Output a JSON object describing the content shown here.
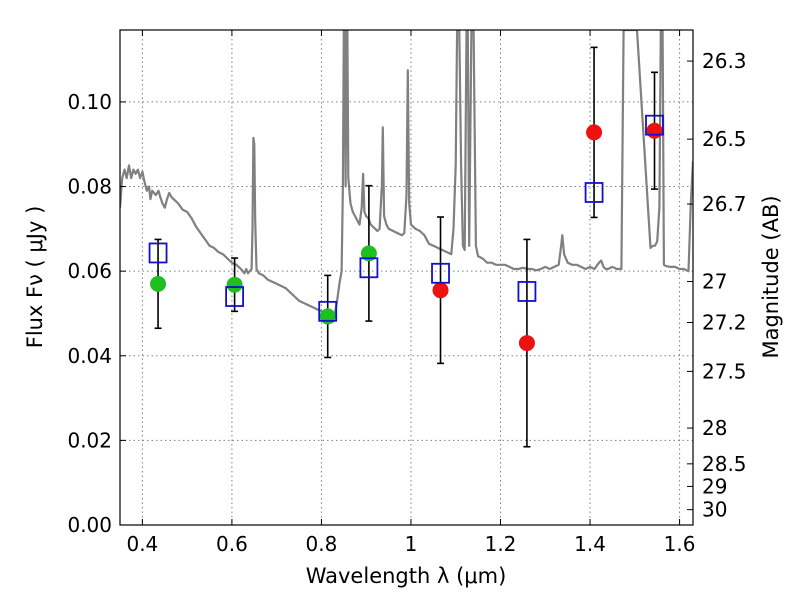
{
  "chart_data": {
    "type": "scatter",
    "title": "",
    "xlabel": "Wavelength  λ (μm)",
    "ylabel": "Flux  Fν  ( μJy )",
    "ylabel_right": "Magnitude (AB)",
    "xlim": [
      0.35,
      1.63
    ],
    "ylim": [
      0.0,
      0.117
    ],
    "grid": true,
    "x_ticks": [
      {
        "value": 0.4,
        "label": "0.4"
      },
      {
        "value": 0.6,
        "label": "0.6"
      },
      {
        "value": 0.8,
        "label": "0.8"
      },
      {
        "value": 1.0,
        "label": "1"
      },
      {
        "value": 1.2,
        "label": "1.2"
      },
      {
        "value": 1.4,
        "label": "1.4"
      },
      {
        "value": 1.6,
        "label": "1.6"
      }
    ],
    "y_ticks": [
      {
        "value": 0.0,
        "label": "0.00"
      },
      {
        "value": 0.02,
        "label": "0.02"
      },
      {
        "value": 0.04,
        "label": "0.04"
      },
      {
        "value": 0.06,
        "label": "0.06"
      },
      {
        "value": 0.08,
        "label": "0.08"
      },
      {
        "value": 0.1,
        "label": "0.10"
      }
    ],
    "right_ticks": [
      {
        "mag": 26.3,
        "label": "26.3"
      },
      {
        "mag": 26.5,
        "label": "26.5"
      },
      {
        "mag": 26.7,
        "label": "26.7"
      },
      {
        "mag": 27.0,
        "label": "27"
      },
      {
        "mag": 27.2,
        "label": "27.2"
      },
      {
        "mag": 27.5,
        "label": "27.5"
      },
      {
        "mag": 28.0,
        "label": "28"
      },
      {
        "mag": 28.5,
        "label": "28.5"
      },
      {
        "mag": 29.0,
        "label": "29"
      },
      {
        "mag": 30.0,
        "label": "30"
      }
    ],
    "series": [
      {
        "marker": "circle",
        "color": "#1fbf1f",
        "points": [
          {
            "x": 0.435,
            "y": 0.057,
            "err": 0.0105
          },
          {
            "x": 0.606,
            "y": 0.0568,
            "err": 0.0063
          },
          {
            "x": 0.814,
            "y": 0.0493,
            "err": 0.0097
          },
          {
            "x": 0.906,
            "y": 0.0642,
            "err": 0.016
          }
        ]
      },
      {
        "marker": "circle",
        "color": "#ee1111",
        "points": [
          {
            "x": 1.066,
            "y": 0.0555,
            "err": 0.0173
          },
          {
            "x": 1.259,
            "y": 0.043,
            "err": 0.0245
          },
          {
            "x": 1.409,
            "y": 0.0928,
            "err": 0.0201
          },
          {
            "x": 1.544,
            "y": 0.0932,
            "err": 0.0138
          }
        ]
      },
      {
        "marker": "square-open",
        "color": "#1111cc",
        "points": [
          {
            "x": 0.435,
            "y": 0.0643
          },
          {
            "x": 0.606,
            "y": 0.054
          },
          {
            "x": 0.814,
            "y": 0.0505
          },
          {
            "x": 0.906,
            "y": 0.0608
          },
          {
            "x": 1.066,
            "y": 0.0595
          },
          {
            "x": 1.259,
            "y": 0.0552
          },
          {
            "x": 1.409,
            "y": 0.0786
          },
          {
            "x": 1.544,
            "y": 0.0945
          }
        ]
      },
      {
        "marker": "line",
        "color": "#808080",
        "points": [
          [
            0.35,
            0.075
          ],
          [
            0.355,
            0.082
          ],
          [
            0.36,
            0.084
          ],
          [
            0.365,
            0.082
          ],
          [
            0.37,
            0.085
          ],
          [
            0.375,
            0.082
          ],
          [
            0.38,
            0.084
          ],
          [
            0.385,
            0.083
          ],
          [
            0.39,
            0.084
          ],
          [
            0.395,
            0.082
          ],
          [
            0.4,
            0.0835
          ],
          [
            0.405,
            0.081
          ],
          [
            0.41,
            0.079
          ],
          [
            0.415,
            0.08
          ],
          [
            0.418,
            0.077
          ],
          [
            0.422,
            0.079
          ],
          [
            0.43,
            0.078
          ],
          [
            0.436,
            0.079
          ],
          [
            0.44,
            0.0775
          ],
          [
            0.445,
            0.076
          ],
          [
            0.45,
            0.075
          ],
          [
            0.455,
            0.077
          ],
          [
            0.46,
            0.0785
          ],
          [
            0.465,
            0.0775
          ],
          [
            0.47,
            0.077
          ],
          [
            0.48,
            0.076
          ],
          [
            0.49,
            0.0745
          ],
          [
            0.5,
            0.074
          ],
          [
            0.51,
            0.0725
          ],
          [
            0.52,
            0.0705
          ],
          [
            0.53,
            0.069
          ],
          [
            0.54,
            0.0675
          ],
          [
            0.55,
            0.066
          ],
          [
            0.56,
            0.0655
          ],
          [
            0.57,
            0.0645
          ],
          [
            0.58,
            0.064
          ],
          [
            0.59,
            0.063
          ],
          [
            0.6,
            0.062
          ],
          [
            0.61,
            0.0615
          ],
          [
            0.62,
            0.0605
          ],
          [
            0.628,
            0.0595
          ],
          [
            0.632,
            0.0605
          ],
          [
            0.636,
            0.0595
          ],
          [
            0.64,
            0.06
          ],
          [
            0.644,
            0.0605
          ],
          [
            0.646,
            0.07
          ],
          [
            0.648,
            0.0915
          ],
          [
            0.65,
            0.09
          ],
          [
            0.652,
            0.072
          ],
          [
            0.655,
            0.0605
          ],
          [
            0.66,
            0.0595
          ],
          [
            0.67,
            0.059
          ],
          [
            0.68,
            0.058
          ],
          [
            0.69,
            0.0575
          ],
          [
            0.7,
            0.057
          ],
          [
            0.71,
            0.0565
          ],
          [
            0.72,
            0.056
          ],
          [
            0.73,
            0.055
          ],
          [
            0.74,
            0.054
          ],
          [
            0.75,
            0.053
          ],
          [
            0.76,
            0.0525
          ],
          [
            0.77,
            0.052
          ],
          [
            0.78,
            0.0515
          ],
          [
            0.79,
            0.051
          ],
          [
            0.8,
            0.0505
          ],
          [
            0.81,
            0.0495
          ],
          [
            0.82,
            0.0485
          ],
          [
            0.825,
            0.048
          ],
          [
            0.83,
            0.05
          ],
          [
            0.835,
            0.053
          ],
          [
            0.84,
            0.057
          ],
          [
            0.845,
            0.06
          ],
          [
            0.848,
            0.08
          ],
          [
            0.85,
            0.117
          ],
          [
            0.852,
            0.117
          ],
          [
            0.854,
            0.08
          ],
          [
            0.856,
            0.117
          ],
          [
            0.858,
            0.117
          ],
          [
            0.86,
            0.082
          ],
          [
            0.865,
            0.076
          ],
          [
            0.87,
            0.074
          ],
          [
            0.88,
            0.072
          ],
          [
            0.885,
            0.071
          ],
          [
            0.89,
            0.075
          ],
          [
            0.893,
            0.083
          ],
          [
            0.896,
            0.074
          ],
          [
            0.9,
            0.073
          ],
          [
            0.905,
            0.0725
          ],
          [
            0.91,
            0.071
          ],
          [
            0.915,
            0.0705
          ],
          [
            0.92,
            0.07
          ],
          [
            0.925,
            0.0695
          ],
          [
            0.93,
            0.07
          ],
          [
            0.935,
            0.0805
          ],
          [
            0.937,
            0.094
          ],
          [
            0.94,
            0.073
          ],
          [
            0.945,
            0.071
          ],
          [
            0.95,
            0.07
          ],
          [
            0.96,
            0.0695
          ],
          [
            0.97,
            0.069
          ],
          [
            0.98,
            0.0685
          ],
          [
            0.985,
            0.069
          ],
          [
            0.99,
            0.078
          ],
          [
            0.993,
            0.1075
          ],
          [
            0.996,
            0.076
          ],
          [
            1.0,
            0.071
          ],
          [
            1.01,
            0.07
          ],
          [
            1.02,
            0.0695
          ],
          [
            1.03,
            0.0685
          ],
          [
            1.04,
            0.0665
          ],
          [
            1.05,
            0.066
          ],
          [
            1.06,
            0.0655
          ],
          [
            1.07,
            0.065
          ],
          [
            1.08,
            0.0645
          ],
          [
            1.09,
            0.064
          ],
          [
            1.095,
            0.07
          ],
          [
            1.1,
            0.085
          ],
          [
            1.103,
            0.117
          ],
          [
            1.108,
            0.117
          ],
          [
            1.112,
            0.085
          ],
          [
            1.116,
            0.066
          ],
          [
            1.12,
            0.065
          ],
          [
            1.124,
            0.117
          ],
          [
            1.127,
            0.117
          ],
          [
            1.13,
            0.066
          ],
          [
            1.135,
            0.117
          ],
          [
            1.14,
            0.117
          ],
          [
            1.145,
            0.066
          ],
          [
            1.15,
            0.0635
          ],
          [
            1.16,
            0.063
          ],
          [
            1.17,
            0.062
          ],
          [
            1.18,
            0.062
          ],
          [
            1.19,
            0.0615
          ],
          [
            1.2,
            0.0615
          ],
          [
            1.21,
            0.0615
          ],
          [
            1.22,
            0.061
          ],
          [
            1.23,
            0.0605
          ],
          [
            1.24,
            0.0605
          ],
          [
            1.25,
            0.0608
          ],
          [
            1.26,
            0.0605
          ],
          [
            1.27,
            0.0605
          ],
          [
            1.28,
            0.0602
          ],
          [
            1.29,
            0.0605
          ],
          [
            1.3,
            0.061
          ],
          [
            1.31,
            0.0605
          ],
          [
            1.32,
            0.061
          ],
          [
            1.33,
            0.0615
          ],
          [
            1.335,
            0.0655
          ],
          [
            1.338,
            0.0685
          ],
          [
            1.342,
            0.064
          ],
          [
            1.35,
            0.062
          ],
          [
            1.36,
            0.0615
          ],
          [
            1.37,
            0.0615
          ],
          [
            1.38,
            0.061
          ],
          [
            1.39,
            0.0605
          ],
          [
            1.4,
            0.061
          ],
          [
            1.41,
            0.0605
          ],
          [
            1.42,
            0.062
          ],
          [
            1.425,
            0.0625
          ],
          [
            1.43,
            0.061
          ],
          [
            1.435,
            0.0605
          ],
          [
            1.44,
            0.0605
          ],
          [
            1.45,
            0.061
          ],
          [
            1.46,
            0.0605
          ],
          [
            1.47,
            0.0605
          ],
          [
            1.475,
            0.117
          ],
          [
            1.505,
            0.117
          ],
          [
            1.535,
            0.0655
          ],
          [
            1.54,
            0.066
          ],
          [
            1.545,
            0.066
          ],
          [
            1.55,
            0.067
          ],
          [
            1.555,
            0.075
          ],
          [
            1.558,
            0.117
          ],
          [
            1.562,
            0.117
          ],
          [
            1.565,
            0.0615
          ],
          [
            1.57,
            0.0612
          ],
          [
            1.58,
            0.061
          ],
          [
            1.59,
            0.061
          ],
          [
            1.6,
            0.0605
          ],
          [
            1.61,
            0.0605
          ],
          [
            1.62,
            0.06
          ],
          [
            1.625,
            0.076
          ],
          [
            1.63,
            0.086
          ]
        ]
      }
    ]
  }
}
